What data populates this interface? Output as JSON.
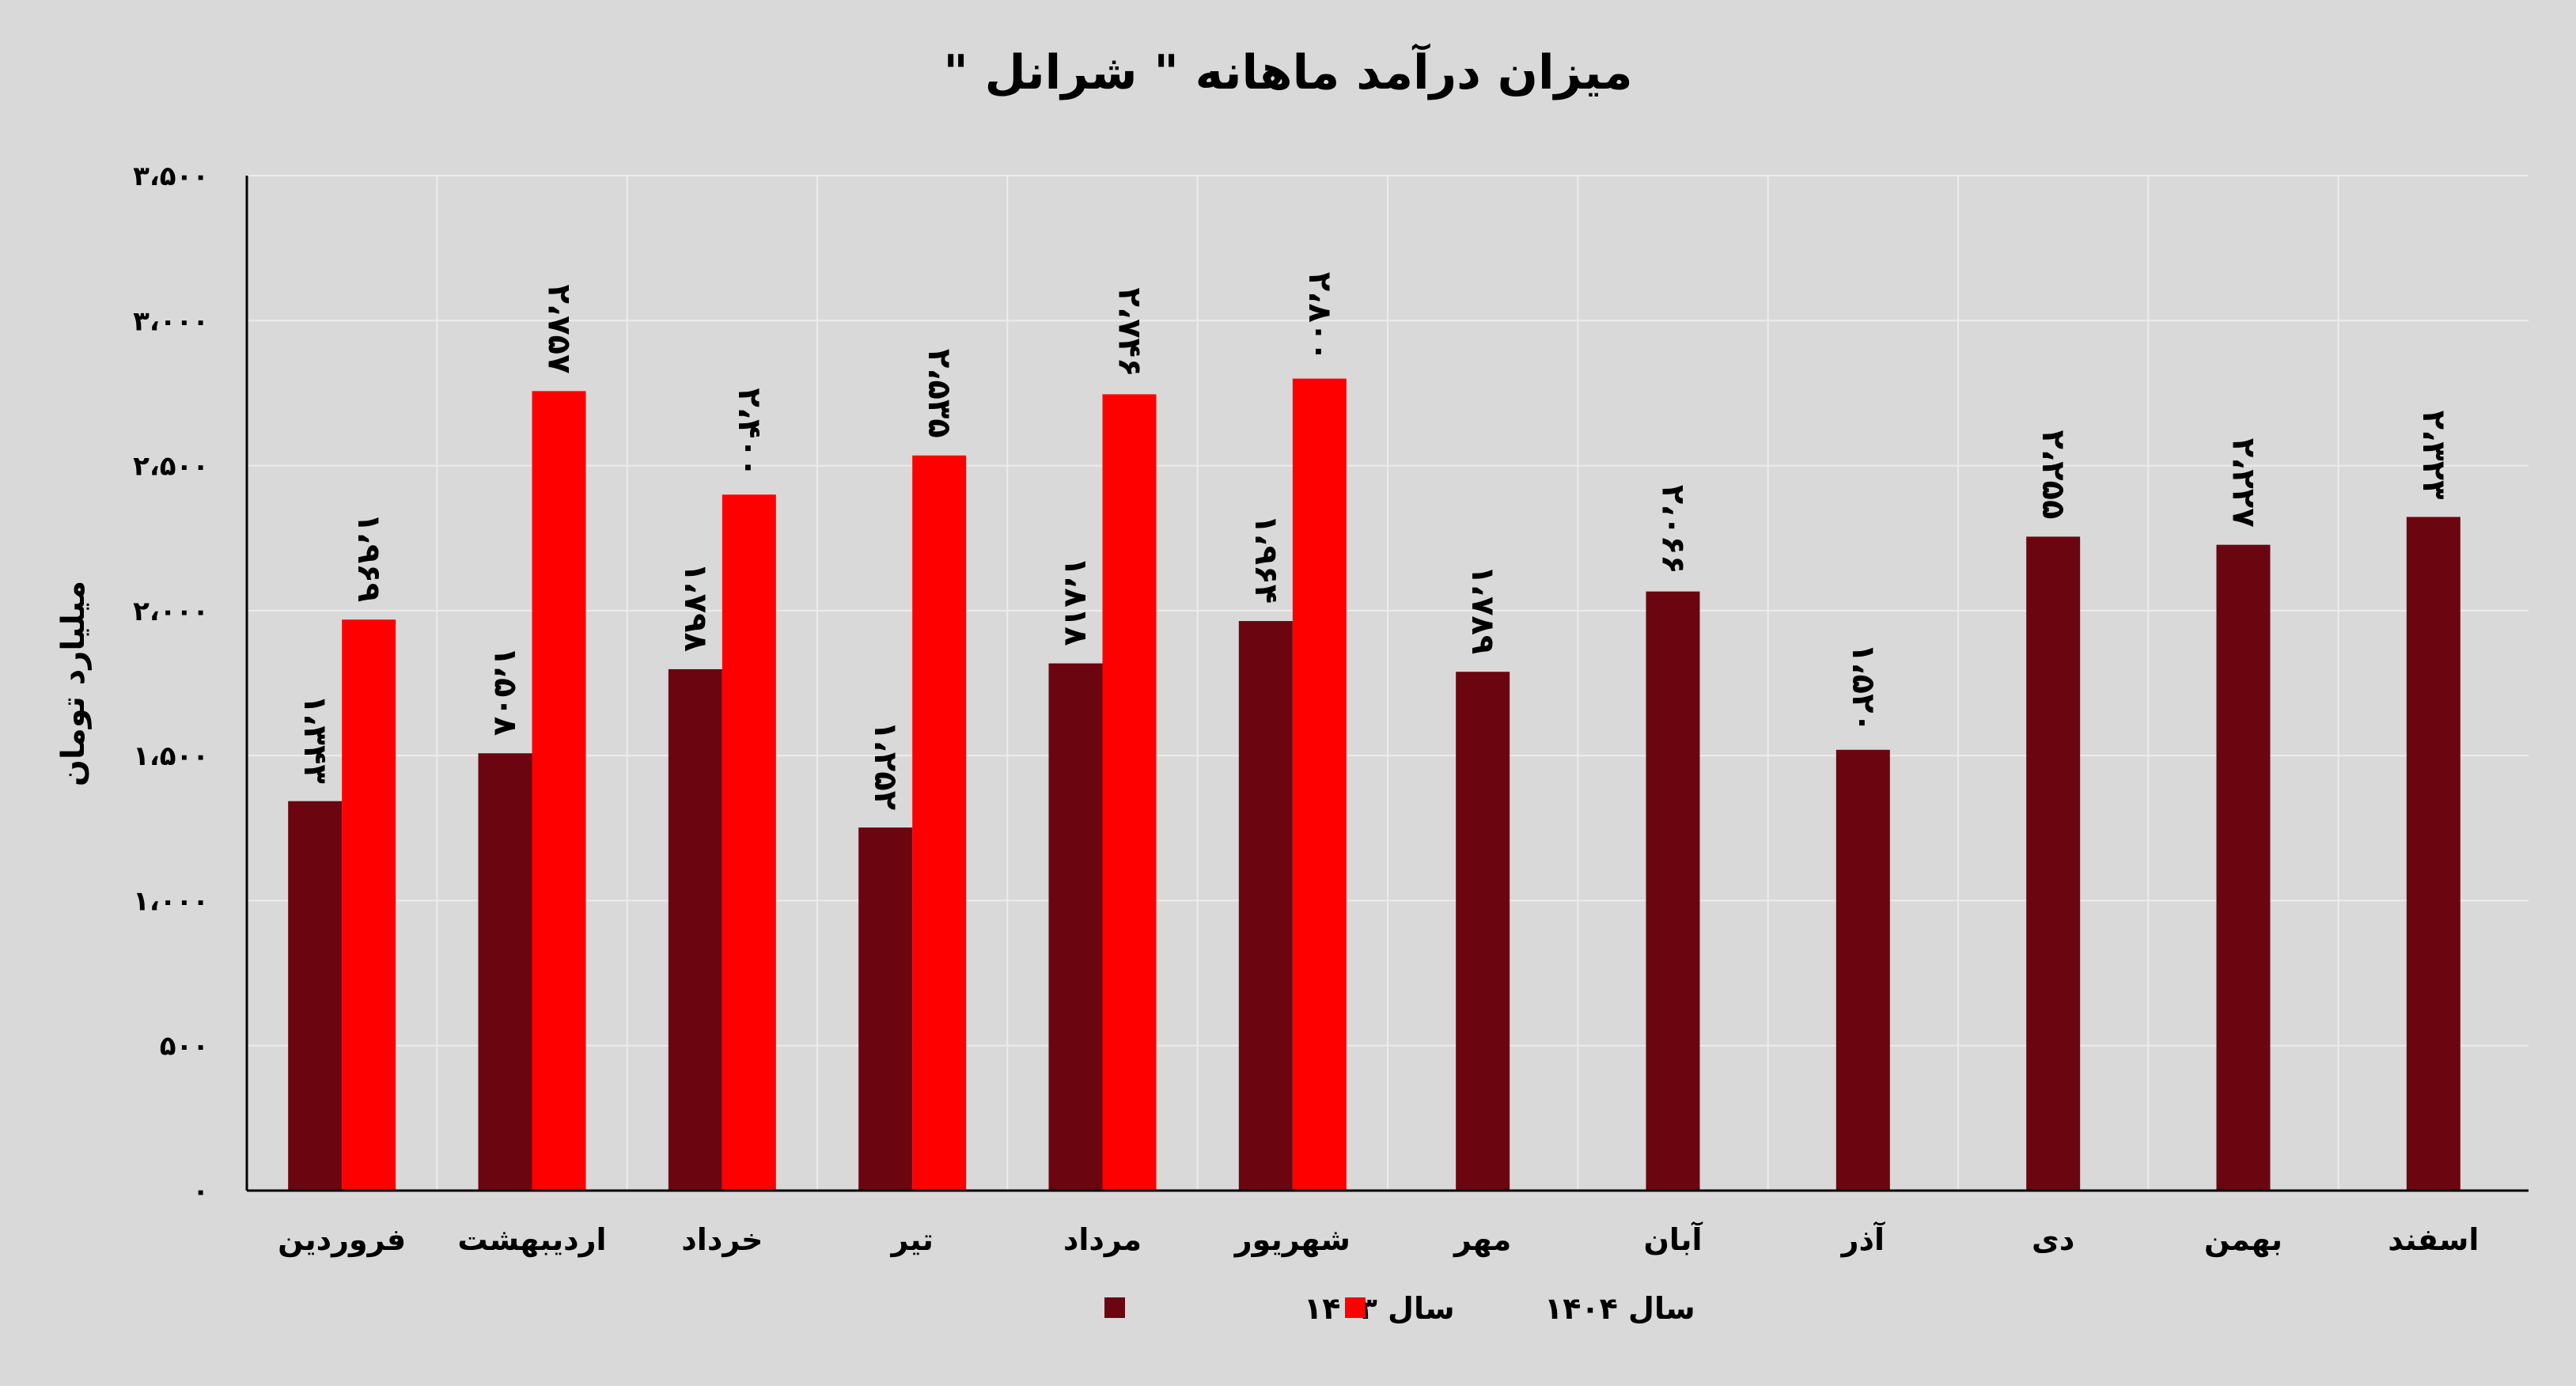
{
  "chart_data": {
    "type": "bar",
    "title": "میزان درآمد ماهانه \" شرانل \"",
    "ylabel": "میلیارد تومان",
    "xlabel": "",
    "ylim": [
      0,
      3500
    ],
    "yticks": [
      0,
      500,
      1000,
      1500,
      2000,
      2500,
      3000,
      3500
    ],
    "ytick_labels": [
      "۰",
      "۵۰۰",
      "۱،۰۰۰",
      "۱،۵۰۰",
      "۲،۰۰۰",
      "۲،۵۰۰",
      "۳،۰۰۰",
      "۳،۵۰۰"
    ],
    "grid": true,
    "legend_position": "bottom",
    "categories": [
      "فروردین",
      "اردیبهشت",
      "خرداد",
      "تیر",
      "مرداد",
      "شهریور",
      "مهر",
      "آبان",
      "آذر",
      "دی",
      "بهمن",
      "اسفند"
    ],
    "series": [
      {
        "name": "سال ۱۴۰۳",
        "color": "#6b0610",
        "values": [
          1343,
          1508,
          1798,
          1252,
          1818,
          1964,
          1789,
          2066,
          1520,
          2255,
          2227,
          2323
        ],
        "labels": [
          "۱،۳۴۳",
          "۱،۵۰۸",
          "۱،۷۹۸",
          "۱،۲۵۲",
          "۱،۸۱۸",
          "۱،۹۶۴",
          "۱،۷۸۹",
          "۲،۰۶۶",
          "۱،۵۲۰",
          "۲،۲۵۵",
          "۲،۲۲۷",
          "۲،۳۲۳"
        ]
      },
      {
        "name": "سال ۱۴۰۴",
        "color": "#ff0000",
        "values": [
          1969,
          2757,
          2400,
          2535,
          2746,
          2800,
          null,
          null,
          null,
          null,
          null,
          null
        ],
        "labels": [
          "۱،۹۶۹",
          "۲،۷۵۷",
          "۲،۴۰۰",
          "۲،۵۳۵",
          "۲،۷۴۶",
          "۲،۸۰۰",
          null,
          null,
          null,
          null,
          null,
          null
        ]
      }
    ]
  }
}
